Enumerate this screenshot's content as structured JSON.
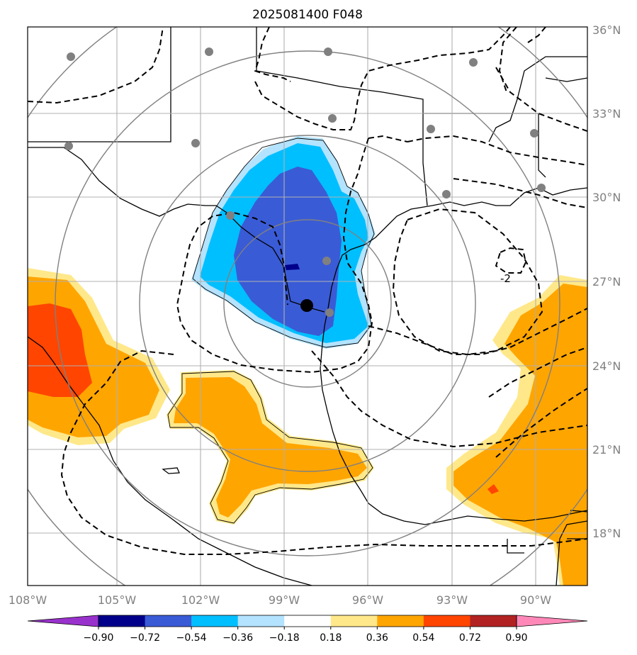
{
  "title": "2025081400 F048",
  "map": {
    "lon_labels": [
      "108°W",
      "105°W",
      "102°W",
      "99°W",
      "96°W",
      "93°W",
      "90°W"
    ],
    "lat_labels": [
      "36°N",
      "33°N",
      "30°N",
      "27°N",
      "24°N",
      "21°N",
      "18°N"
    ],
    "contour_label": "-2"
  },
  "colorbar": {
    "labels": [
      "−0.90",
      "−0.72",
      "−0.54",
      "−0.36",
      "−0.18",
      "0.18",
      "0.36",
      "0.54",
      "0.72",
      "0.90"
    ],
    "colors": [
      "#9932cc",
      "#00008b",
      "#3a5bd6",
      "#00bfff",
      "#b3e3ff",
      "#ffffff",
      "#ffe88a",
      "#ffa500",
      "#ff4500",
      "#b22222",
      "#ff88b8"
    ]
  },
  "colors": {
    "dark_blue": "#00008b",
    "blue": "#3a5bd6",
    "light_blue": "#00bfff",
    "pale_blue": "#b3e3ff",
    "pale_yellow": "#ffe88a",
    "orange": "#ffa500",
    "red_orange": "#ff4500",
    "grid": "#b0b0b0",
    "range_ring": "#808080"
  }
}
